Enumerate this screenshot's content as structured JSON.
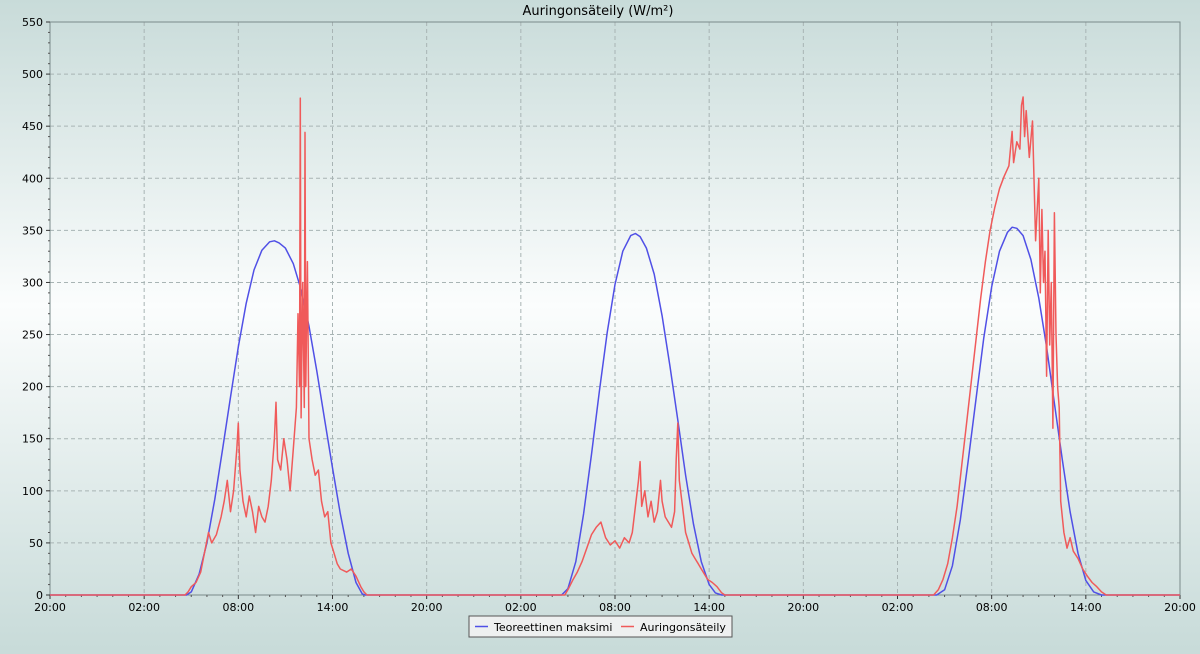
{
  "chart_data": {
    "type": "line",
    "title": "Auringonsäteily (W/m²)",
    "xlabel": "",
    "ylabel": "",
    "xlim": [
      0,
      72
    ],
    "ylim": [
      0,
      550
    ],
    "y_ticks": [
      0,
      50,
      100,
      150,
      200,
      250,
      300,
      350,
      400,
      450,
      500,
      550
    ],
    "x_ticks": [
      {
        "x": 0,
        "label": "20:00"
      },
      {
        "x": 6,
        "label": "02:00"
      },
      {
        "x": 12,
        "label": "08:00"
      },
      {
        "x": 18,
        "label": "14:00"
      },
      {
        "x": 24,
        "label": "20:00"
      },
      {
        "x": 30,
        "label": "02:00"
      },
      {
        "x": 36,
        "label": "08:00"
      },
      {
        "x": 42,
        "label": "14:00"
      },
      {
        "x": 48,
        "label": "20:00"
      },
      {
        "x": 54,
        "label": "02:00"
      },
      {
        "x": 60,
        "label": "08:00"
      },
      {
        "x": 66,
        "label": "14:00"
      },
      {
        "x": 72,
        "label": "20:00"
      }
    ],
    "grid": true,
    "legend_position": "bottom-center",
    "colors": {
      "theoretical": "#5050e6",
      "measured": "#f05a5a"
    },
    "series": [
      {
        "name": "Teoreettinen maksimi",
        "color": "#5050e6",
        "points": [
          [
            0,
            0
          ],
          [
            8.7,
            0
          ],
          [
            9.0,
            3
          ],
          [
            9.5,
            20
          ],
          [
            10.0,
            50
          ],
          [
            10.5,
            92
          ],
          [
            11.0,
            140
          ],
          [
            11.5,
            190
          ],
          [
            12.0,
            238
          ],
          [
            12.5,
            280
          ],
          [
            13.0,
            312
          ],
          [
            13.5,
            331
          ],
          [
            14.0,
            339
          ],
          [
            14.3,
            340
          ],
          [
            14.6,
            338
          ],
          [
            15.0,
            333
          ],
          [
            15.5,
            318
          ],
          [
            16.0,
            293
          ],
          [
            16.5,
            258
          ],
          [
            17.0,
            215
          ],
          [
            17.5,
            168
          ],
          [
            18.0,
            122
          ],
          [
            18.5,
            78
          ],
          [
            19.0,
            40
          ],
          [
            19.5,
            12
          ],
          [
            19.9,
            1
          ],
          [
            20.1,
            0
          ],
          [
            32.6,
            0
          ],
          [
            33.0,
            6
          ],
          [
            33.5,
            32
          ],
          [
            34.0,
            78
          ],
          [
            34.5,
            135
          ],
          [
            35.0,
            195
          ],
          [
            35.5,
            252
          ],
          [
            36.0,
            298
          ],
          [
            36.5,
            330
          ],
          [
            37.0,
            345
          ],
          [
            37.3,
            347
          ],
          [
            37.6,
            344
          ],
          [
            38.0,
            333
          ],
          [
            38.5,
            308
          ],
          [
            39.0,
            268
          ],
          [
            39.5,
            220
          ],
          [
            40.0,
            168
          ],
          [
            40.5,
            115
          ],
          [
            41.0,
            68
          ],
          [
            41.5,
            32
          ],
          [
            42.0,
            10
          ],
          [
            42.4,
            2
          ],
          [
            42.8,
            0
          ],
          [
            56.5,
            0
          ],
          [
            57.0,
            5
          ],
          [
            57.5,
            28
          ],
          [
            58.0,
            72
          ],
          [
            58.5,
            128
          ],
          [
            59.0,
            188
          ],
          [
            59.5,
            247
          ],
          [
            60.0,
            296
          ],
          [
            60.5,
            330
          ],
          [
            61.0,
            348
          ],
          [
            61.3,
            353
          ],
          [
            61.6,
            352
          ],
          [
            62.0,
            345
          ],
          [
            62.5,
            322
          ],
          [
            63.0,
            285
          ],
          [
            63.5,
            238
          ],
          [
            64.0,
            184
          ],
          [
            64.5,
            130
          ],
          [
            65.0,
            80
          ],
          [
            65.5,
            40
          ],
          [
            66.0,
            14
          ],
          [
            66.5,
            3
          ],
          [
            67.0,
            0
          ],
          [
            72,
            0
          ]
        ]
      },
      {
        "name": "Auringonsäteily",
        "color": "#f05a5a",
        "points": [
          [
            0,
            0
          ],
          [
            8.6,
            0
          ],
          [
            8.8,
            3
          ],
          [
            9.0,
            8
          ],
          [
            9.3,
            12
          ],
          [
            9.6,
            22
          ],
          [
            9.9,
            45
          ],
          [
            10.1,
            60
          ],
          [
            10.3,
            50
          ],
          [
            10.6,
            58
          ],
          [
            10.9,
            75
          ],
          [
            11.1,
            90
          ],
          [
            11.3,
            110
          ],
          [
            11.5,
            80
          ],
          [
            11.7,
            100
          ],
          [
            11.9,
            140
          ],
          [
            12.0,
            165
          ],
          [
            12.1,
            120
          ],
          [
            12.3,
            90
          ],
          [
            12.5,
            75
          ],
          [
            12.7,
            95
          ],
          [
            12.9,
            80
          ],
          [
            13.1,
            60
          ],
          [
            13.3,
            85
          ],
          [
            13.5,
            75
          ],
          [
            13.7,
            70
          ],
          [
            13.9,
            85
          ],
          [
            14.1,
            110
          ],
          [
            14.3,
            150
          ],
          [
            14.4,
            185
          ],
          [
            14.5,
            130
          ],
          [
            14.7,
            120
          ],
          [
            14.9,
            150
          ],
          [
            15.1,
            130
          ],
          [
            15.3,
            100
          ],
          [
            15.5,
            140
          ],
          [
            15.7,
            180
          ],
          [
            15.8,
            270
          ],
          [
            15.9,
            200
          ],
          [
            15.95,
            477
          ],
          [
            16.0,
            170
          ],
          [
            16.1,
            300
          ],
          [
            16.2,
            180
          ],
          [
            16.25,
            444
          ],
          [
            16.3,
            200
          ],
          [
            16.4,
            320
          ],
          [
            16.5,
            150
          ],
          [
            16.7,
            130
          ],
          [
            16.9,
            115
          ],
          [
            17.1,
            120
          ],
          [
            17.3,
            90
          ],
          [
            17.5,
            75
          ],
          [
            17.7,
            80
          ],
          [
            17.9,
            50
          ],
          [
            18.1,
            40
          ],
          [
            18.3,
            30
          ],
          [
            18.5,
            25
          ],
          [
            18.9,
            22
          ],
          [
            19.2,
            25
          ],
          [
            19.5,
            18
          ],
          [
            19.8,
            8
          ],
          [
            20.0,
            3
          ],
          [
            20.2,
            0
          ],
          [
            32.8,
            0
          ],
          [
            33.0,
            5
          ],
          [
            33.3,
            14
          ],
          [
            33.6,
            22
          ],
          [
            33.9,
            32
          ],
          [
            34.2,
            45
          ],
          [
            34.5,
            58
          ],
          [
            34.8,
            65
          ],
          [
            35.1,
            70
          ],
          [
            35.4,
            55
          ],
          [
            35.7,
            48
          ],
          [
            36.0,
            52
          ],
          [
            36.3,
            45
          ],
          [
            36.6,
            55
          ],
          [
            36.9,
            50
          ],
          [
            37.1,
            60
          ],
          [
            37.3,
            85
          ],
          [
            37.5,
            110
          ],
          [
            37.6,
            128
          ],
          [
            37.7,
            85
          ],
          [
            37.9,
            100
          ],
          [
            38.1,
            75
          ],
          [
            38.3,
            90
          ],
          [
            38.5,
            70
          ],
          [
            38.7,
            80
          ],
          [
            38.9,
            110
          ],
          [
            39.0,
            90
          ],
          [
            39.2,
            75
          ],
          [
            39.4,
            70
          ],
          [
            39.6,
            65
          ],
          [
            39.8,
            80
          ],
          [
            39.9,
            130
          ],
          [
            40.0,
            165
          ],
          [
            40.1,
            110
          ],
          [
            40.3,
            85
          ],
          [
            40.5,
            60
          ],
          [
            40.7,
            50
          ],
          [
            40.9,
            40
          ],
          [
            41.1,
            35
          ],
          [
            41.3,
            30
          ],
          [
            41.5,
            25
          ],
          [
            41.7,
            20
          ],
          [
            41.9,
            15
          ],
          [
            42.2,
            12
          ],
          [
            42.5,
            8
          ],
          [
            42.8,
            2
          ],
          [
            43.0,
            0
          ],
          [
            56.3,
            0
          ],
          [
            56.6,
            5
          ],
          [
            56.9,
            15
          ],
          [
            57.2,
            30
          ],
          [
            57.5,
            55
          ],
          [
            57.8,
            85
          ],
          [
            58.1,
            125
          ],
          [
            58.4,
            165
          ],
          [
            58.7,
            205
          ],
          [
            59.0,
            245
          ],
          [
            59.3,
            285
          ],
          [
            59.6,
            320
          ],
          [
            59.9,
            350
          ],
          [
            60.2,
            372
          ],
          [
            60.5,
            390
          ],
          [
            60.8,
            402
          ],
          [
            61.1,
            412
          ],
          [
            61.3,
            445
          ],
          [
            61.4,
            415
          ],
          [
            61.6,
            435
          ],
          [
            61.8,
            428
          ],
          [
            61.9,
            470
          ],
          [
            62.0,
            478
          ],
          [
            62.1,
            440
          ],
          [
            62.2,
            465
          ],
          [
            62.4,
            420
          ],
          [
            62.6,
            455
          ],
          [
            62.8,
            340
          ],
          [
            63.0,
            400
          ],
          [
            63.1,
            290
          ],
          [
            63.2,
            370
          ],
          [
            63.3,
            300
          ],
          [
            63.4,
            330
          ],
          [
            63.5,
            210
          ],
          [
            63.6,
            350
          ],
          [
            63.7,
            240
          ],
          [
            63.8,
            300
          ],
          [
            63.9,
            160
          ],
          [
            64.0,
            367
          ],
          [
            64.1,
            250
          ],
          [
            64.2,
            200
          ],
          [
            64.3,
            180
          ],
          [
            64.4,
            90
          ],
          [
            64.6,
            60
          ],
          [
            64.8,
            45
          ],
          [
            65.0,
            55
          ],
          [
            65.2,
            42
          ],
          [
            65.5,
            35
          ],
          [
            65.8,
            25
          ],
          [
            66.1,
            18
          ],
          [
            66.4,
            12
          ],
          [
            66.7,
            8
          ],
          [
            67.0,
            3
          ],
          [
            67.3,
            0
          ],
          [
            72,
            0
          ]
        ]
      }
    ]
  }
}
